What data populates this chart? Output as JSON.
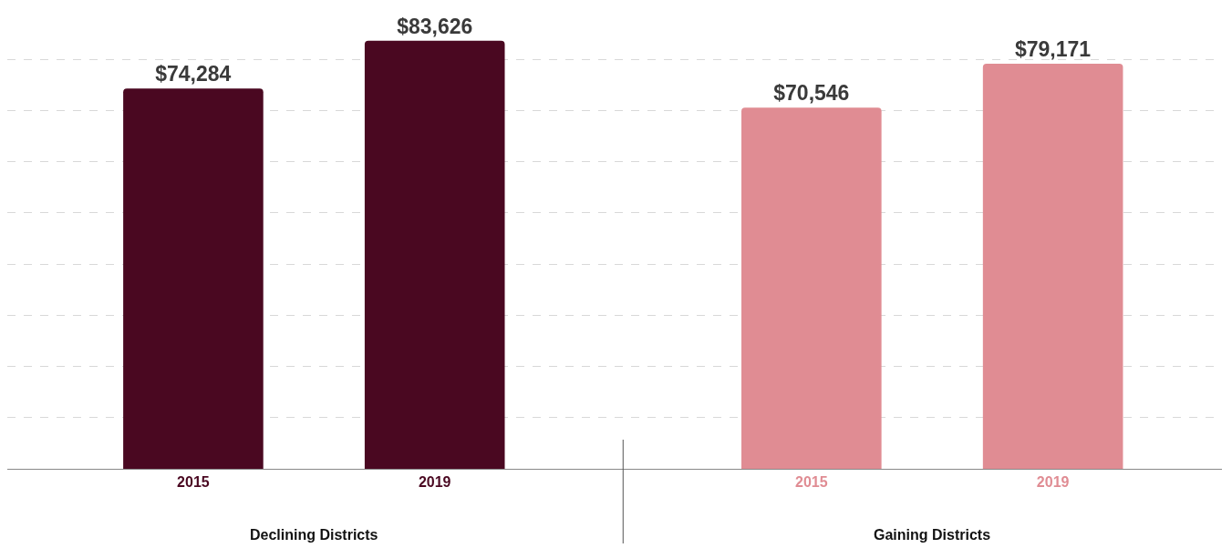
{
  "chart_data": {
    "type": "bar",
    "categories": [
      "2015",
      "2019",
      "2015",
      "2019"
    ],
    "values": [
      74284,
      83626,
      70546,
      79171
    ],
    "colors": [
      "#4a0821",
      "#4a0821",
      "#e08c93",
      "#e08c93"
    ],
    "data_labels": true,
    "value_labels": [
      "$74,284",
      "$83,626",
      "$70,546",
      "$79,171"
    ],
    "ylim": [
      0,
      91600
    ],
    "yticks": [
      {
        "value": 10000,
        "label": null
      },
      {
        "value": 20000,
        "label": null
      },
      {
        "value": 30000,
        "label": null
      },
      {
        "value": 40000,
        "label": null
      },
      {
        "value": 50000,
        "label": null
      },
      {
        "value": 60000,
        "label": null
      },
      {
        "value": 70000,
        "label": null
      },
      {
        "value": 80000,
        "label": null
      }
    ],
    "tick_labels": "x",
    "grid": "y",
    "annotations": [
      "Declining Districts",
      "Gaining Districts"
    ]
  }
}
